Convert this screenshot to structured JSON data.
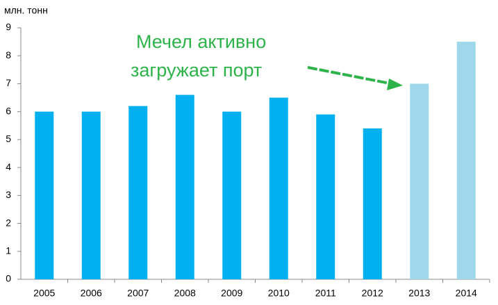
{
  "chart_data": {
    "type": "bar",
    "y_label": "млн. тонн",
    "annotation": [
      "Мечел активно",
      "загружает порт"
    ],
    "categories": [
      "2005",
      "2006",
      "2007",
      "2008",
      "2009",
      "2010",
      "2011",
      "2012",
      "2013",
      "2014"
    ],
    "values": [
      6,
      6,
      6.2,
      6.6,
      6,
      6.5,
      5.9,
      5.4,
      7,
      8.5
    ],
    "colors": [
      "#00b0f0",
      "#00b0f0",
      "#00b0f0",
      "#00b0f0",
      "#00b0f0",
      "#00b0f0",
      "#00b0f0",
      "#00b0f0",
      "#9ed8ea",
      "#9ed8ea"
    ],
    "ylim": [
      0,
      9
    ],
    "yticks": [
      0,
      1,
      2,
      3,
      4,
      5,
      6,
      7,
      8,
      9
    ],
    "grid": false
  }
}
